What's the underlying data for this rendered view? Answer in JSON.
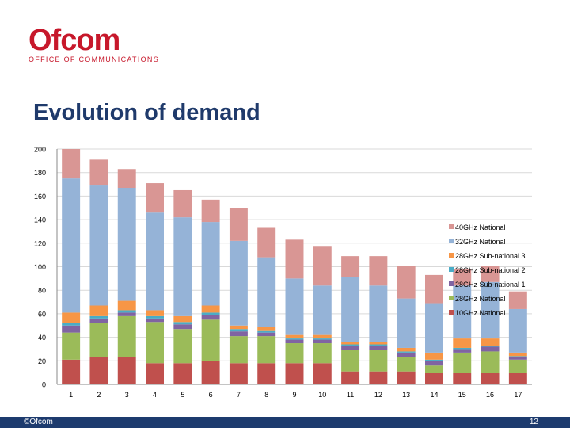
{
  "header": {
    "logo_word": "Ofcom",
    "logo_sub": "OFFICE OF COMMUNICATIONS"
  },
  "slide": {
    "title": "Evolution of demand"
  },
  "footer": {
    "copyright": "©Ofcom",
    "page_number": "12"
  },
  "chart_data": {
    "type": "bar",
    "stacked": true,
    "title": "",
    "xlabel": "",
    "ylabel": "",
    "ylim": [
      0,
      200
    ],
    "yticks": [
      0,
      20,
      40,
      60,
      80,
      100,
      120,
      140,
      160,
      180,
      200
    ],
    "grid": true,
    "legend_position": "right",
    "categories": [
      "1",
      "2",
      "3",
      "4",
      "5",
      "6",
      "7",
      "8",
      "9",
      "10",
      "11",
      "12",
      "13",
      "14",
      "15",
      "16",
      "17"
    ],
    "series": [
      {
        "name": "10GHz National",
        "color": "#c0504d",
        "values": [
          21,
          23,
          23,
          18,
          18,
          20,
          18,
          18,
          18,
          18,
          11,
          11,
          11,
          10,
          10,
          10,
          10
        ]
      },
      {
        "name": "28GHz National",
        "color": "#9bbb59",
        "values": [
          23,
          29,
          35,
          35,
          29,
          35,
          23,
          23,
          17,
          17,
          18,
          18,
          12,
          6,
          17,
          18,
          11
        ]
      },
      {
        "name": "28GHz Sub-national 1",
        "color": "#8064a2",
        "values": [
          6,
          4,
          3,
          3,
          4,
          4,
          4,
          3,
          3,
          3,
          4,
          4,
          4,
          4,
          3,
          4,
          2
        ]
      },
      {
        "name": "28GHz Sub-national 2",
        "color": "#4bacc6",
        "values": [
          2,
          2,
          2,
          2,
          2,
          2,
          2,
          2,
          1,
          1,
          1,
          1,
          1,
          1,
          1,
          1,
          1
        ]
      },
      {
        "name": "28GHz Sub-national 3",
        "color": "#f79646",
        "values": [
          9,
          9,
          8,
          5,
          5,
          6,
          3,
          3,
          3,
          3,
          2,
          2,
          3,
          6,
          8,
          6,
          3
        ]
      },
      {
        "name": "32GHz National",
        "color": "#95b3d7",
        "values": [
          114,
          102,
          96,
          83,
          84,
          71,
          72,
          59,
          48,
          42,
          55,
          48,
          42,
          42,
          45,
          48,
          37
        ]
      },
      {
        "name": "40GHz National",
        "color": "#d99694",
        "values": [
          25,
          22,
          16,
          25,
          23,
          19,
          28,
          25,
          33,
          33,
          18,
          25,
          28,
          24,
          14,
          14,
          15
        ]
      }
    ]
  }
}
